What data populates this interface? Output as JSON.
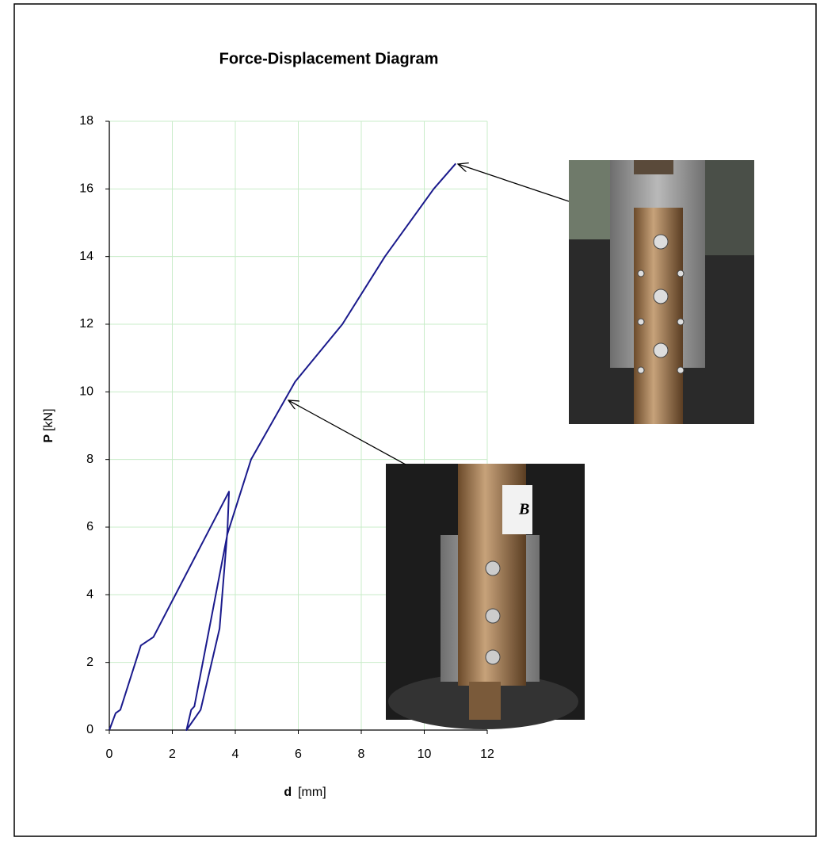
{
  "chart_data": {
    "type": "line",
    "title": "Force-Displacement Diagram",
    "xlabel": "d",
    "xlabel_unit": "[mm]",
    "ylabel": "P",
    "ylabel_unit": "[kN]",
    "x": [
      0,
      0.2,
      0.35,
      1.0,
      1.4,
      3.8,
      3.75,
      3.5,
      2.9,
      2.45,
      2.6,
      2.7,
      3.75,
      4.5,
      5.9,
      7.4,
      8.75,
      10.3,
      11.0
    ],
    "values": [
      0,
      0.5,
      0.6,
      2.5,
      2.75,
      7.05,
      5.9,
      3.0,
      0.6,
      0,
      0.6,
      0.7,
      5.8,
      8.0,
      10.3,
      12.0,
      14.0,
      16.0,
      16.75
    ],
    "color": "#1a1a8c",
    "xlim": [
      0,
      12
    ],
    "ylim": [
      0,
      18
    ],
    "xticks": [
      0,
      2,
      4,
      6,
      8,
      10,
      12
    ],
    "yticks": [
      0,
      2,
      4,
      6,
      8,
      10,
      12,
      14,
      16,
      18
    ],
    "grid": true,
    "grid_color": "#c8ecc8"
  }
}
